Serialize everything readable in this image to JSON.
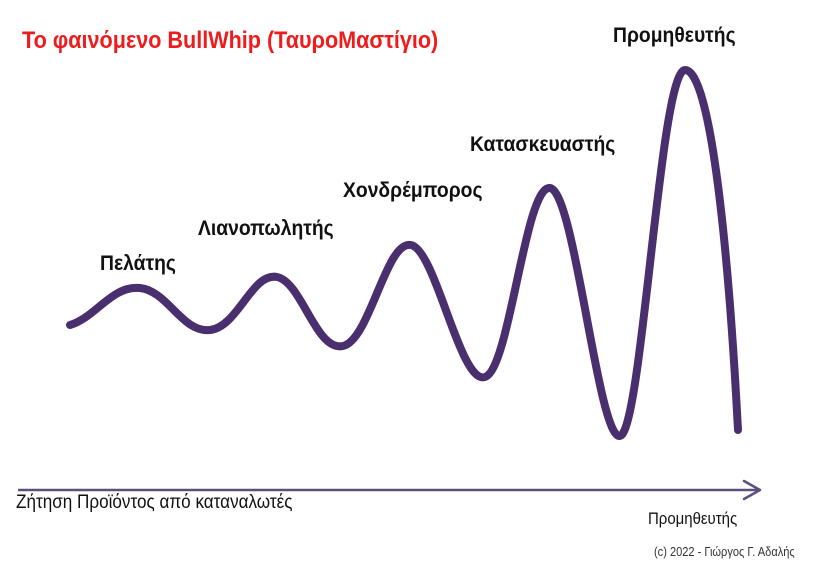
{
  "title": "Το φαινόμενο BullWhip (ΤαυροΜαστίγιο)",
  "stages": [
    "Πελάτης",
    "Λιανοπωλητής",
    "Χονδρέμπορος",
    "Κατασκευαστής",
    "Προμηθευτής"
  ],
  "axis": {
    "left_label": "Ζήτηση Προϊόντος από καταναλωτές",
    "right_label": "Προμηθευτής"
  },
  "copyright": "(c) 2022 - Γιώργος Γ. Αδαλής",
  "colors": {
    "title": "#ee1c1c",
    "wave": "#4a2f6e",
    "axis": "#5d4f7c",
    "text": "#111111"
  }
}
